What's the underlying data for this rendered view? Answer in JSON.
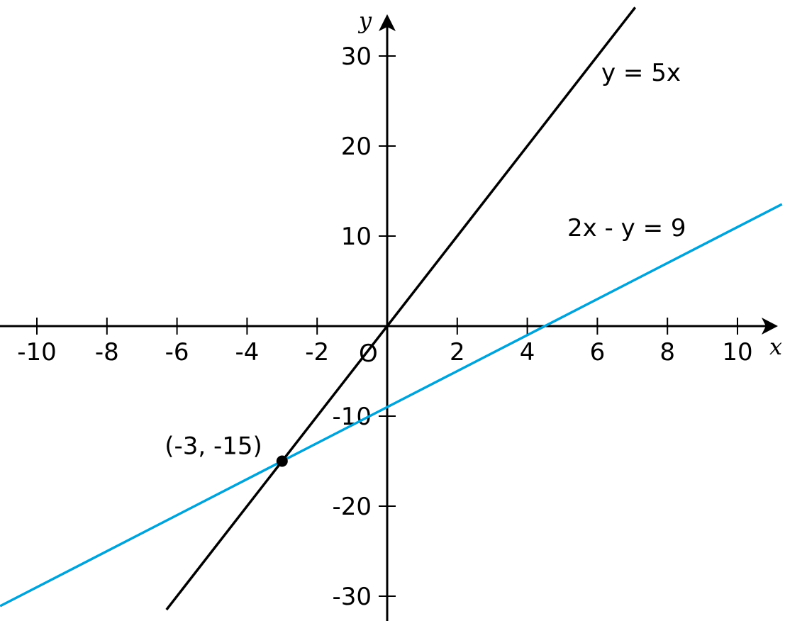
{
  "chart_data": {
    "type": "line",
    "title": "",
    "xlabel": "x",
    "ylabel": "y",
    "origin_label": "O",
    "xlim": [
      -11.05,
      11.1
    ],
    "ylim": [
      -32.8,
      34.6
    ],
    "grid": false,
    "x_ticks": [
      -10,
      -8,
      -6,
      -4,
      -2,
      2,
      4,
      6,
      8,
      10
    ],
    "y_ticks": [
      -30,
      -20,
      -10,
      10,
      20,
      30
    ],
    "series": [
      {
        "name": "y = 5x",
        "slope": 5,
        "intercept": 0,
        "x_range": [
          -6.3,
          7.08
        ],
        "color": "#000000"
      },
      {
        "name": "2x - y = 9",
        "slope": 2,
        "intercept": -9,
        "x_range": [
          -11.05,
          11.27
        ],
        "color": "#00A3DA"
      }
    ],
    "points": [
      {
        "label": "(-3, -15)",
        "x": -3,
        "y": -15
      }
    ]
  }
}
